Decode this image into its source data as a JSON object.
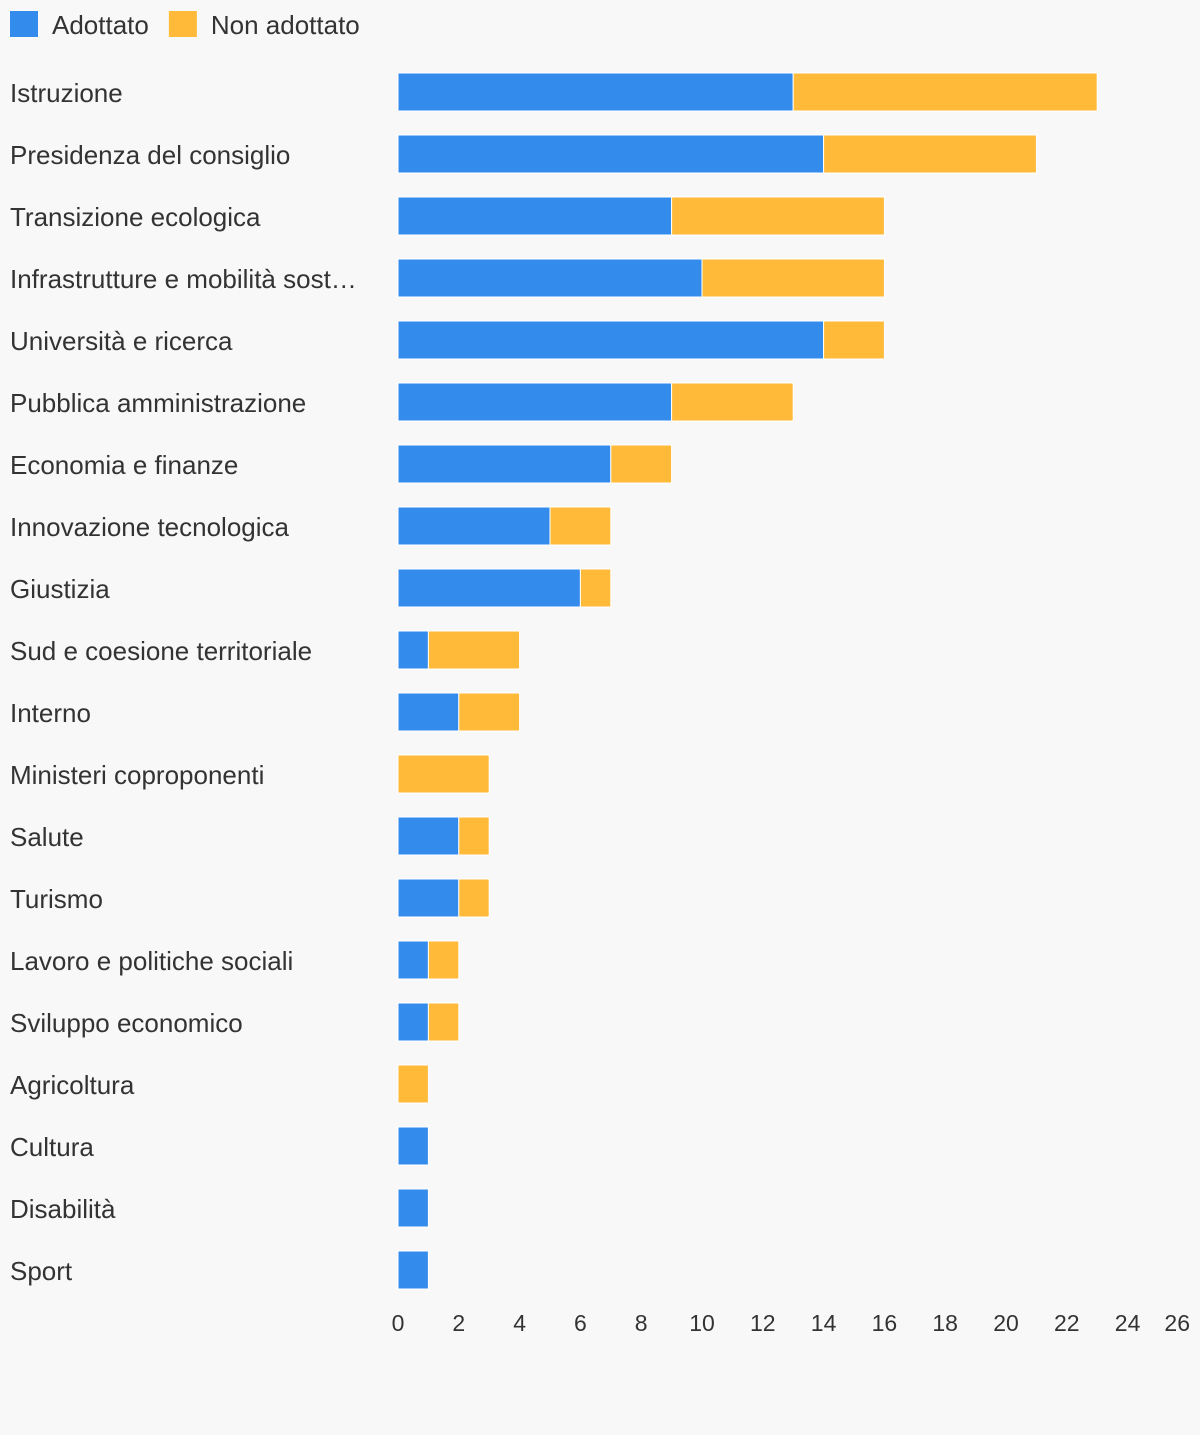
{
  "chart_data": {
    "type": "bar",
    "orientation": "horizontal",
    "stacked": true,
    "title": "",
    "xlabel": "",
    "ylabel": "",
    "xlim": [
      0,
      26
    ],
    "x_ticks": [
      0,
      2,
      4,
      6,
      8,
      10,
      12,
      14,
      16,
      18,
      20,
      22,
      24,
      26
    ],
    "grid": false,
    "legend_position": "top-left",
    "categories": [
      "Istruzione",
      "Presidenza del consiglio",
      "Transizione ecologica",
      "Infrastrutture e mobilità sost…",
      "Università e ricerca",
      "Pubblica amministrazione",
      "Economia e finanze",
      "Innovazione tecnologica",
      "Giustizia",
      "Sud e coesione territoriale",
      "Interno",
      "Ministeri coproponenti",
      "Salute",
      "Turismo",
      "Lavoro e politiche sociali",
      "Sviluppo economico",
      "Agricoltura",
      "Cultura",
      "Disabilità",
      "Sport"
    ],
    "series": [
      {
        "name": "Adottato",
        "color": "#338cec",
        "values": [
          13,
          14,
          9,
          10,
          14,
          9,
          7,
          5,
          6,
          1,
          2,
          0,
          2,
          2,
          1,
          1,
          0,
          1,
          1,
          1
        ]
      },
      {
        "name": "Non adottato",
        "color": "#ffba3a",
        "values": [
          10,
          7,
          7,
          6,
          2,
          4,
          2,
          2,
          1,
          3,
          2,
          3,
          1,
          1,
          1,
          1,
          1,
          0,
          0,
          0
        ]
      }
    ]
  }
}
